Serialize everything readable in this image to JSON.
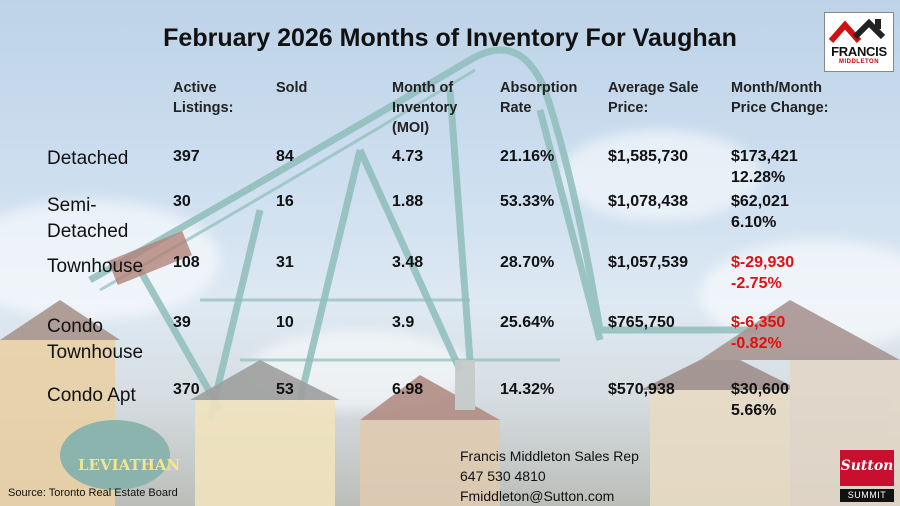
{
  "title": "February 2026 Months of Inventory For Vaughan",
  "logo": {
    "name": "FRANCIS",
    "sub": "MIDDLETON"
  },
  "headers": {
    "active": [
      "Active",
      "Listings:"
    ],
    "sold": [
      "Sold"
    ],
    "moi": [
      "Month of",
      "Inventory",
      "(MOI)"
    ],
    "absorption": [
      "Absorption",
      "Rate"
    ],
    "avg_price": [
      "Average Sale",
      "Price:"
    ],
    "change": [
      "Month/Month",
      "Price Change:"
    ]
  },
  "rows": [
    {
      "label": [
        "Detached"
      ],
      "active": "397",
      "sold": "84",
      "moi": "4.73",
      "absorption": "21.16%",
      "avg_price": "$1,585,730",
      "change_amount": "$173,421",
      "change_pct": "12.28%",
      "negative": false
    },
    {
      "label": [
        "Semi-",
        "Detached"
      ],
      "active": "30",
      "sold": "16",
      "moi": "1.88",
      "absorption": "53.33%",
      "avg_price": "$1,078,438",
      "change_amount": "$62,021",
      "change_pct": "6.10%",
      "negative": false
    },
    {
      "label": [
        "Townhouse"
      ],
      "active": "108",
      "sold": "31",
      "moi": "3.48",
      "absorption": "28.70%",
      "avg_price": "$1,057,539",
      "change_amount": "$-29,930",
      "change_pct": "-2.75%",
      "negative": true
    },
    {
      "label": [
        "Condo",
        "Townhouse"
      ],
      "active": "39",
      "sold": "10",
      "moi": "3.9",
      "absorption": "25.64%",
      "avg_price": "$765,750",
      "change_amount": "$-6,350",
      "change_pct": "-0.82%",
      "negative": true
    },
    {
      "label": [
        "Condo Apt"
      ],
      "active": "370",
      "sold": "53",
      "moi": "6.98",
      "absorption": "14.32%",
      "avg_price": "$570,938",
      "change_amount": "$30,600",
      "change_pct": "5.66%",
      "negative": false
    }
  ],
  "contact": {
    "name": "Francis Middleton Sales Rep",
    "phone": "647 530 4810",
    "email": "Fmiddleton@Sutton.com"
  },
  "source": "Source: Toronto Real Estate Board",
  "brand": {
    "word": "Sutton",
    "summit": "SUMMIT"
  },
  "colors": {
    "negative": "#e01010",
    "brand_red": "#c8102e",
    "text": "#111111"
  },
  "background": {
    "sign_text": "LEVIATHAN"
  }
}
